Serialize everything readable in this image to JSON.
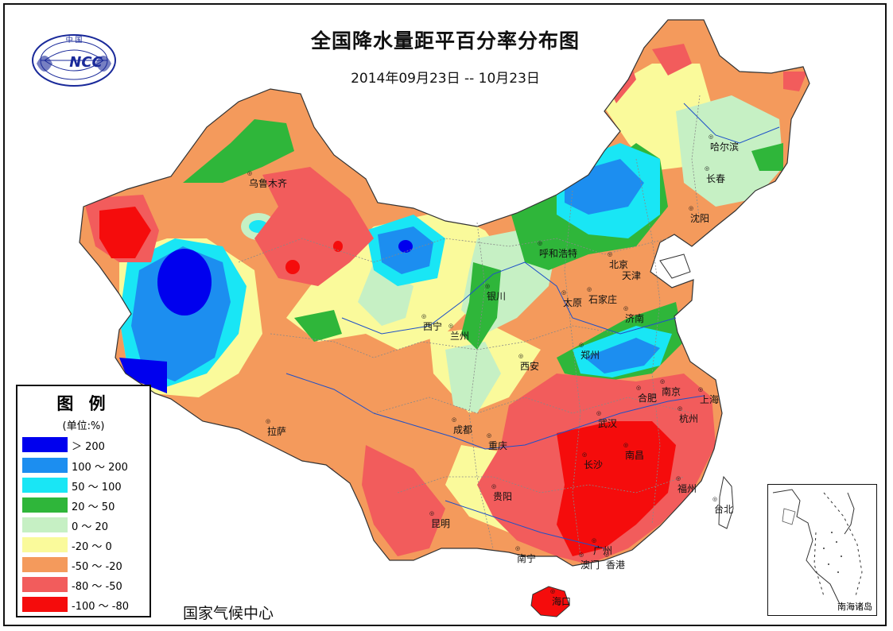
{
  "title": "全国降水量距平百分率分布图",
  "subtitle": "2014年09月23日 -- 10月23日",
  "source": "国家气候中心",
  "logo": {
    "top_text": "中  国",
    "mark": "NCC"
  },
  "legend": {
    "title": "图 例",
    "unit": "(单位:%)",
    "items": [
      {
        "label": "＞ 200",
        "color": "#0000ee"
      },
      {
        "label": "100 ～ 200",
        "color": "#1c8ef0"
      },
      {
        "label": "50 ～ 100",
        "color": "#19e6f5"
      },
      {
        "label": "20 ～ 50",
        "color": "#2fb63a"
      },
      {
        "label": "0 ～ 20",
        "color": "#c6f0c4"
      },
      {
        "label": "-20 ～ 0",
        "color": "#fafa9b"
      },
      {
        "label": "-50 ～ -20",
        "color": "#f49a5c"
      },
      {
        "label": "-80 ～ -50",
        "color": "#f25c5c"
      },
      {
        "label": "-100 ～ -80",
        "color": "#f50c0c"
      }
    ]
  },
  "inset_label": "南海诸岛",
  "cities": [
    "乌鲁木齐",
    "哈尔滨",
    "长春",
    "沈阳",
    "呼和浩特",
    "北京",
    "天津",
    "银川",
    "石家庄",
    "太原",
    "济南",
    "西宁",
    "兰州",
    "西安",
    "郑州",
    "合肥",
    "南京",
    "上海",
    "武汉",
    "杭州",
    "成都",
    "重庆",
    "长沙",
    "南昌",
    "福州",
    "贵阳",
    "昆明",
    "台北",
    "南宁",
    "广州",
    "澳门",
    "香港",
    "海口",
    "拉萨"
  ]
}
